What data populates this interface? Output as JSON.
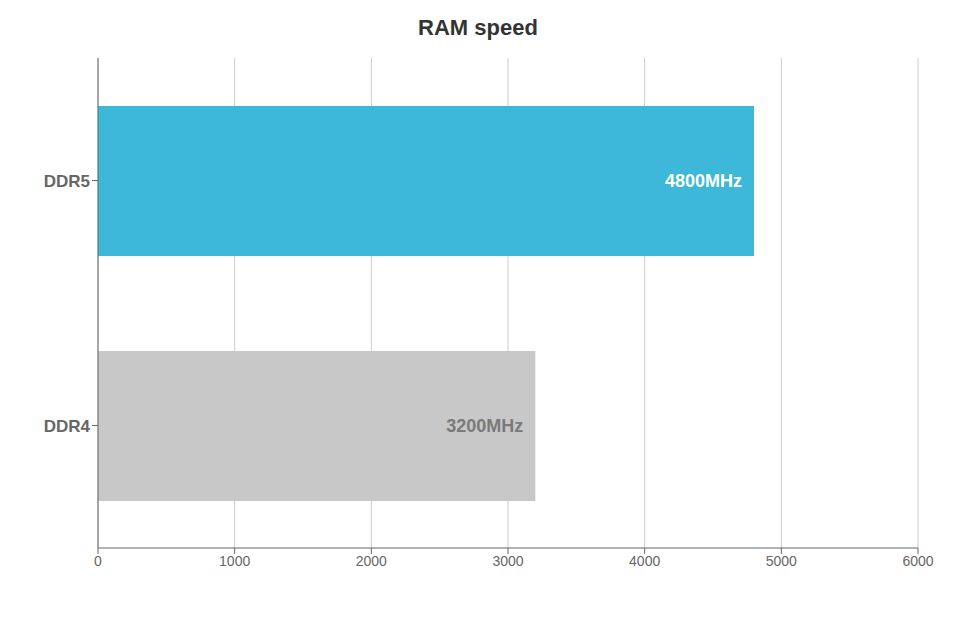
{
  "chart_data": {
    "type": "bar",
    "title": "RAM speed",
    "orientation": "horizontal",
    "categories": [
      "DDR5",
      "DDR4"
    ],
    "values": [
      4800,
      3200
    ],
    "value_labels": [
      "4800MHz",
      "3200MHz"
    ],
    "data_labels": true,
    "colors": [
      "#3db8d8",
      "#c8c8c8"
    ],
    "xlim": [
      0,
      6000
    ],
    "xticks": [
      0,
      1000,
      2000,
      3000,
      4000,
      5000,
      6000
    ],
    "grid": true
  }
}
